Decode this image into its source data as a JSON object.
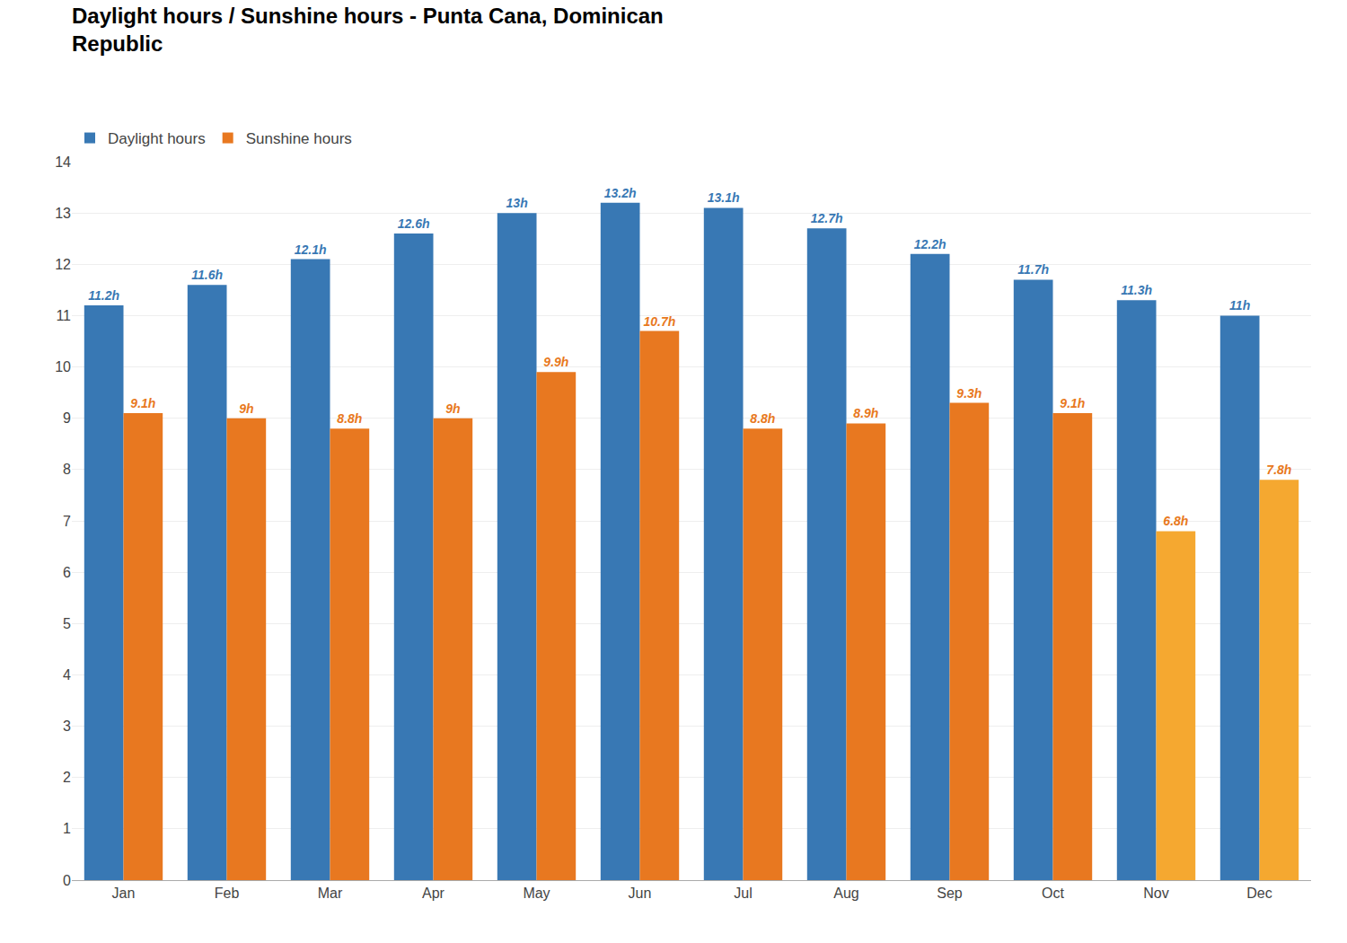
{
  "chart_data": {
    "type": "bar",
    "title": "Daylight hours / Sunshine hours - Punta Cana, Dominican\nRepublic",
    "categories": [
      "Jan",
      "Feb",
      "Mar",
      "Apr",
      "May",
      "Jun",
      "Jul",
      "Aug",
      "Sep",
      "Oct",
      "Nov",
      "Dec"
    ],
    "series": [
      {
        "name": "Daylight hours",
        "color": "#3878b4",
        "values": [
          11.2,
          11.6,
          12.1,
          12.6,
          13.0,
          13.2,
          13.1,
          12.7,
          12.2,
          11.7,
          11.3,
          11.0
        ],
        "value_labels": [
          "11.2h",
          "11.6h",
          "12.1h",
          "12.6h",
          "13h",
          "13.2h",
          "13.1h",
          "12.7h",
          "12.2h",
          "11.7h",
          "11.3h",
          "11h"
        ]
      },
      {
        "name": "Sunshine hours",
        "color": "#e87820",
        "colors": [
          "#e87820",
          "#e87820",
          "#e87820",
          "#e87820",
          "#e87820",
          "#e87820",
          "#e87820",
          "#e87820",
          "#e87820",
          "#e87820",
          "#f5a830",
          "#f5a830"
        ],
        "values": [
          9.1,
          9.0,
          8.8,
          9.0,
          9.9,
          10.7,
          8.8,
          8.9,
          9.3,
          9.1,
          6.8,
          7.8
        ],
        "value_labels": [
          "9.1h",
          "9h",
          "8.8h",
          "9h",
          "9.9h",
          "10.7h",
          "8.8h",
          "8.9h",
          "9.3h",
          "9.1h",
          "6.8h",
          "7.8h"
        ]
      }
    ],
    "ylim": [
      0,
      14
    ],
    "yticks": [
      0,
      1,
      2,
      3,
      4,
      5,
      6,
      7,
      8,
      9,
      10,
      11,
      12,
      13,
      14
    ],
    "grid": true,
    "legend": "top left",
    "data_labels": true
  }
}
